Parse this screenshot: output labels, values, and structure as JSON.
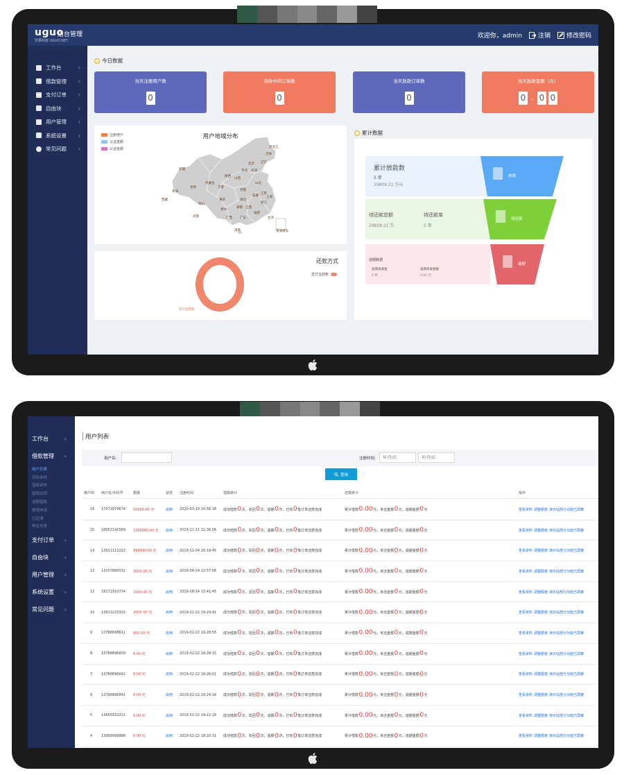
{
  "dashboard": {
    "logo": {
      "brand": "uguo",
      "title": "后台管理",
      "subtitle": "优果科技 UGUO.NET"
    },
    "header": {
      "welcome": "欢迎你，admin",
      "logout": "注销",
      "change_password": "修改密码"
    },
    "sidebar": [
      {
        "label": "工作台",
        "icon": "monitor-icon"
      },
      {
        "label": "借款管理",
        "icon": "document-icon"
      },
      {
        "label": "支付订单",
        "icon": "card-icon"
      },
      {
        "label": "自由块",
        "icon": "grid-icon"
      },
      {
        "label": "用户管理",
        "icon": "user-icon"
      },
      {
        "label": "系统设置",
        "icon": "settings-icon"
      },
      {
        "label": "常见问题",
        "icon": "help-icon"
      }
    ],
    "today_title": "今日数据",
    "stats": [
      {
        "label": "当天注册用户数",
        "digits": [
          "0"
        ],
        "color": "#5e69b9"
      },
      {
        "label": "借款中的订单数",
        "digits": [
          "0"
        ],
        "color": "#f07a5f"
      },
      {
        "label": "当天放款订单数",
        "digits": [
          "0"
        ],
        "color": "#5e69b9"
      },
      {
        "label": "当天放款金额（元）",
        "digits": [
          "0",
          ".",
          "0",
          "0"
        ],
        "color": "#f07a5f"
      }
    ],
    "map": {
      "title": "用户地域分布",
      "legend": [
        {
          "label": "注册用户",
          "color": "#e9814f"
        },
        {
          "label": "认证金额",
          "color": "#8fc7ee"
        },
        {
          "label": "认证金额",
          "color": "#d774cf"
        }
      ],
      "regions": [
        "新疆",
        "西藏",
        "青海",
        "甘肃",
        "四川",
        "云南",
        "内蒙古",
        "宁夏",
        "陕西",
        "山西",
        "河北",
        "北京",
        "天津",
        "辽宁",
        "吉林",
        "黑龙江",
        "山东",
        "河南",
        "湖北",
        "湖南",
        "江西",
        "安徽",
        "江苏",
        "浙江",
        "福建",
        "广东",
        "广西",
        "贵州",
        "海南",
        "上海",
        "重庆",
        "台湾",
        "南海诸岛"
      ]
    },
    "payment": {
      "title": "还款方式",
      "legend": "支付宝转账",
      "ring_label": "支付宝转账"
    },
    "cumulative_title": "累计数据",
    "funnel": [
      {
        "title": "累计放款数",
        "lines": [
          "5 单",
          "29809.21 万元"
        ],
        "badge": "放款",
        "color": "#5aa9f5",
        "bg": "#eaf3fd"
      },
      {
        "title": "待还款总额",
        "title2": "待还款单",
        "lines": [
          "29809.21 万"
        ],
        "lines2": [
          "5 单"
        ],
        "badge": "待还款",
        "color": "#7ed03a",
        "bg": "#eaf6e3"
      },
      {
        "title": "逾期数据",
        "sub1": "逾期未收金",
        "sub2": "逾期未收金额",
        "val1": "0 单",
        "val2": "0.00 元",
        "badge": "逾期",
        "color": "#e2656b",
        "bg": "#fbe7ea"
      }
    ]
  },
  "userlist": {
    "sidebar": {
      "groups_before": [
        {
          "label": "工作台"
        },
        {
          "label": "借款管理"
        }
      ],
      "subs": [
        {
          "label": "用户列表",
          "active": true
        },
        {
          "label": "资料审核",
          "active": false
        },
        {
          "label": "借款审核",
          "active": false
        },
        {
          "label": "借款驳回",
          "active": false
        },
        {
          "label": "逾期借款",
          "active": false
        },
        {
          "label": "提现申请",
          "active": false
        },
        {
          "label": "已还清",
          "active": false
        },
        {
          "label": "黑名列表",
          "active": false
        }
      ],
      "groups_after": [
        {
          "label": "支付订单"
        },
        {
          "label": "自由块"
        },
        {
          "label": "用户管理"
        },
        {
          "label": "系统设置"
        },
        {
          "label": "常见问题"
        }
      ]
    },
    "title": "用户列表",
    "filter": {
      "username_label": "用户名:",
      "username_value": "",
      "regtime_label": "注册时间:",
      "date_from_placeholder": "年/月/日",
      "date_to_placeholder": "年/月/日",
      "search_label": "查询"
    },
    "columns": [
      "用户ID",
      "用户名/手机号",
      "额度",
      "状态",
      "注册时间",
      "借款统计",
      "还款统计",
      "操作"
    ],
    "stat_text": {
      "succ": "成功借款",
      "times": "次",
      "reject": "驳回",
      "overdue": "逾期",
      "done": "已有",
      "finish": "笔订单还款完成"
    },
    "repay_text": {
      "total": "累计借款",
      "yuan": "元",
      "unpaid": "未还金额",
      "late": "逾期金额"
    },
    "actions": [
      "查看资料",
      "调整额度",
      "演示站部分功能已屏蔽"
    ],
    "rows": [
      {
        "id": "16",
        "phone": "17071879674",
        "limit": "50000.00 元",
        "status": "启用",
        "time": "2020-03-19 16:56:18"
      },
      {
        "id": "15",
        "phone": "18052141569",
        "limit": "1000000.00 元",
        "status": "启用",
        "time": "2019-11-11 11:36:06"
      },
      {
        "id": "14",
        "phone": "13611112222",
        "limit": "999999.00 元",
        "status": "启用",
        "time": "2019-11-04 16:19:45"
      },
      {
        "id": "13",
        "phone": "13157866532",
        "limit": "2000.00 元",
        "status": "启用",
        "time": "2019-08-24 13:57:06"
      },
      {
        "id": "12",
        "phone": "18171910774",
        "limit": "1000.00 元",
        "status": "启用",
        "time": "2019-08-24 13:41:45"
      },
      {
        "id": "10",
        "phone": "13622223333",
        "limit": "2000.00 元",
        "status": "启用",
        "time": "2019-02-22 19:29:41"
      },
      {
        "id": "9",
        "phone": "13788898811",
        "limit": "800.00 元",
        "status": "启用",
        "time": "2019-02-22 19:28:55"
      },
      {
        "id": "8",
        "phone": "13788896659",
        "limit": "0.00 元",
        "status": "启用",
        "time": "2019-02-22 19:28:15"
      },
      {
        "id": "7",
        "phone": "13788896642",
        "limit": "0.00 元",
        "status": "启用",
        "time": "2019-02-22 19:26:01"
      },
      {
        "id": "6",
        "phone": "13788896841",
        "limit": "0.00 元",
        "status": "启用",
        "time": "2019-02-22 19:24:18"
      },
      {
        "id": "5",
        "phone": "13655552222",
        "limit": "0.00 元",
        "status": "启用",
        "time": "2019-02-22 19:22:18"
      },
      {
        "id": "4",
        "phone": "13999996888",
        "limit": "0.00 元",
        "status": "启用",
        "time": "2019-02-22 19:20:31"
      }
    ]
  }
}
